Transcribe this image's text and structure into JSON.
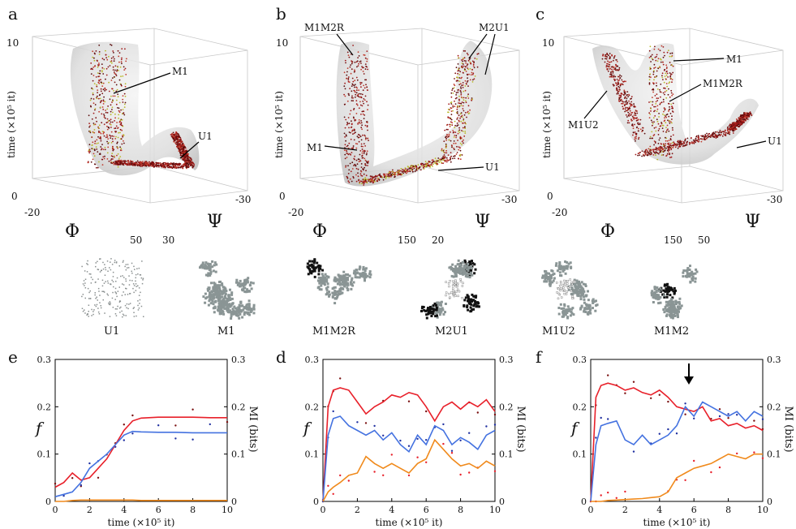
{
  "top_panels": [
    {
      "letter": "a",
      "ylabel": "time (×10⁵ it)",
      "y_top": "10",
      "y_bottom": "0",
      "phi": "Φ",
      "psi": "Ψ",
      "phi_min": "-20",
      "phi_max": "50",
      "psi_near": "30",
      "psi_far": "-30",
      "labels": [
        "M1",
        "U1"
      ]
    },
    {
      "letter": "b",
      "ylabel": "time (×10⁵ it)",
      "y_top": "10",
      "y_bottom": "0",
      "phi": "Φ",
      "psi": "Ψ",
      "phi_min": "-20",
      "phi_max": "150",
      "psi_near": "20",
      "psi_far": "-30",
      "labels": [
        "M1M2R",
        "M2U1",
        "M1",
        "U1"
      ]
    },
    {
      "letter": "c",
      "ylabel": "time (×10⁵ it)",
      "y_top": "10",
      "y_bottom": "0",
      "phi": "Φ",
      "psi": "Ψ",
      "phi_min": "-20",
      "phi_max": "150",
      "psi_near": "50",
      "psi_far": "-30",
      "labels": [
        "M1",
        "M1M2R",
        "M1U2",
        "U1"
      ]
    }
  ],
  "thumbnails": [
    "U1",
    "M1",
    "M1M2R",
    "M2U1",
    "M1U2",
    "M1M2"
  ],
  "bottom_panels": [
    {
      "letter": "e"
    },
    {
      "letter": "d"
    },
    {
      "letter": "f"
    }
  ],
  "axes_text": {
    "xlabel": "time (×10⁵ it)",
    "left_label": "f",
    "right_label": "MI (bits)",
    "yticks": [
      "0",
      "0.1",
      "0.2",
      "0.3"
    ],
    "xticks": [
      "0",
      "2",
      "4",
      "6",
      "8",
      "10"
    ]
  },
  "chart_data": [
    {
      "type": "line",
      "panel": "e",
      "xlim": [
        0,
        10
      ],
      "ylim": [
        0,
        0.3
      ],
      "x": [
        0,
        0.5,
        1,
        1.5,
        2,
        2.5,
        3,
        3.5,
        4,
        4.5,
        5,
        6,
        7,
        8,
        9,
        10
      ],
      "series": [
        {
          "name": "red",
          "color": "#e8202a",
          "values": [
            0.03,
            0.04,
            0.06,
            0.045,
            0.05,
            0.07,
            0.09,
            0.12,
            0.15,
            0.17,
            0.176,
            0.178,
            0.178,
            0.178,
            0.177,
            0.177
          ]
        },
        {
          "name": "blue",
          "color": "#4472e0",
          "values": [
            0.01,
            0.015,
            0.02,
            0.04,
            0.07,
            0.085,
            0.1,
            0.12,
            0.14,
            0.148,
            0.147,
            0.146,
            0.146,
            0.145,
            0.145,
            0.145
          ]
        },
        {
          "name": "orange",
          "color": "#f08a1c",
          "values": [
            0,
            0,
            0.002,
            0.003,
            0.003,
            0.003,
            0.003,
            0.003,
            0.003,
            0.003,
            0.002,
            0.002,
            0.002,
            0.002,
            0.002,
            0.002
          ]
        }
      ]
    },
    {
      "type": "line",
      "panel": "d",
      "xlim": [
        0,
        10
      ],
      "ylim": [
        0,
        0.3
      ],
      "x": [
        0,
        0.3,
        0.6,
        1,
        1.5,
        2,
        2.5,
        3,
        3.5,
        4,
        4.5,
        5,
        5.5,
        6,
        6.5,
        7,
        7.5,
        8,
        8.5,
        9,
        9.5,
        10
      ],
      "series": [
        {
          "name": "red",
          "color": "#e8202a",
          "values": [
            0,
            0.2,
            0.235,
            0.24,
            0.235,
            0.21,
            0.185,
            0.2,
            0.21,
            0.225,
            0.22,
            0.23,
            0.225,
            0.2,
            0.17,
            0.2,
            0.21,
            0.195,
            0.21,
            0.2,
            0.215,
            0.19
          ]
        },
        {
          "name": "blue",
          "color": "#4472e0",
          "values": [
            0,
            0.14,
            0.175,
            0.18,
            0.16,
            0.15,
            0.14,
            0.15,
            0.13,
            0.145,
            0.12,
            0.105,
            0.14,
            0.12,
            0.16,
            0.15,
            0.12,
            0.135,
            0.125,
            0.11,
            0.14,
            0.15
          ]
        },
        {
          "name": "orange",
          "color": "#f08a1c",
          "values": [
            0,
            0.02,
            0.03,
            0.04,
            0.055,
            0.06,
            0.095,
            0.08,
            0.07,
            0.08,
            0.07,
            0.06,
            0.08,
            0.09,
            0.13,
            0.11,
            0.09,
            0.075,
            0.08,
            0.07,
            0.085,
            0.075
          ]
        }
      ]
    },
    {
      "type": "line",
      "panel": "f",
      "xlim": [
        0,
        10
      ],
      "ylim": [
        0,
        0.3
      ],
      "x": [
        0,
        0.3,
        0.6,
        1,
        1.5,
        2,
        2.5,
        3,
        3.5,
        4,
        4.5,
        5,
        5.5,
        6,
        6.5,
        7,
        7.5,
        8,
        8.5,
        9,
        9.5,
        10
      ],
      "series": [
        {
          "name": "red",
          "color": "#e8202a",
          "values": [
            0,
            0.22,
            0.245,
            0.25,
            0.245,
            0.235,
            0.24,
            0.23,
            0.225,
            0.235,
            0.22,
            0.2,
            0.195,
            0.19,
            0.2,
            0.17,
            0.175,
            0.16,
            0.165,
            0.155,
            0.16,
            0.15
          ]
        },
        {
          "name": "blue",
          "color": "#4472e0",
          "values": [
            0,
            0.12,
            0.16,
            0.165,
            0.17,
            0.13,
            0.12,
            0.14,
            0.12,
            0.13,
            0.14,
            0.16,
            0.2,
            0.18,
            0.21,
            0.2,
            0.19,
            0.18,
            0.19,
            0.17,
            0.19,
            0.18
          ]
        },
        {
          "name": "orange",
          "color": "#f08a1c",
          "values": [
            0,
            0,
            0,
            0.002,
            0.003,
            0.004,
            0.005,
            0.006,
            0.008,
            0.01,
            0.02,
            0.05,
            0.06,
            0.07,
            0.075,
            0.08,
            0.09,
            0.1,
            0.095,
            0.09,
            0.1,
            0.1
          ]
        }
      ]
    }
  ]
}
